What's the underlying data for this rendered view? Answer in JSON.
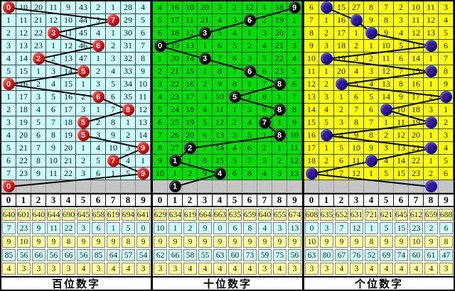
{
  "colors": {
    "line_color": "#000000",
    "grid_line": "#3c4a4c",
    "separator_row_bg": "#c6c6c6",
    "header_row_bg": "#ffffff",
    "stats_row_bgs": [
      "#FFFF99",
      "#CCFFFF",
      "#FFFF99",
      "#CCFFFF",
      "#FFFF99"
    ]
  },
  "chart_data": {
    "type": "table",
    "title": "3D lottery digit trend chart",
    "panels": [
      "百位数字",
      "十位数字",
      "个位数字"
    ],
    "drawn_digits": {
      "hundreds": [
        0,
        7,
        3,
        6,
        2,
        5,
        0,
        6,
        8,
        5,
        5,
        9,
        7,
        9
      ],
      "tens": [
        9,
        6,
        3,
        0,
        3,
        6,
        8,
        5,
        8,
        7,
        8,
        2,
        1,
        4
      ],
      "units": [
        1,
        3,
        4,
        8,
        1,
        8,
        2,
        9,
        5,
        8,
        1,
        8,
        4,
        0
      ]
    },
    "tail_row_digits": {
      "hundreds": 0,
      "tens": 1,
      "units": 8
    }
  },
  "panels": [
    {
      "id": "hundreds",
      "footer_label": "百位数字",
      "colors": {
        "cell_bg": "#CCFFFF",
        "ball_bg": "#EE1111",
        "ball_text": "#FFFFFF"
      },
      "header": [
        "0",
        "1",
        "2",
        "3",
        "4",
        "5",
        "6",
        "7",
        "8",
        "9"
      ],
      "rows": [
        {
          "ball": 0,
          "cells": [
            "0",
            "10",
            "20",
            "11",
            "9",
            "43",
            "2",
            "1",
            "28",
            "4"
          ]
        },
        {
          "ball": 7,
          "cells": [
            "1",
            "11",
            "21",
            "12",
            "10",
            "44",
            "3",
            "7",
            "29",
            "5"
          ]
        },
        {
          "ball": 3,
          "cells": [
            "2",
            "12",
            "22",
            "3",
            "11",
            "45",
            "4",
            "1",
            "30",
            "6"
          ]
        },
        {
          "ball": 6,
          "cells": [
            "3",
            "13",
            "23",
            "1",
            "12",
            "46",
            "6",
            "2",
            "31",
            "7"
          ]
        },
        {
          "ball": 2,
          "cells": [
            "4",
            "14",
            "2",
            "2",
            "13",
            "47",
            "1",
            "3",
            "32",
            "8"
          ]
        },
        {
          "ball": 5,
          "cells": [
            "5",
            "15",
            "1",
            "3",
            "14",
            "5",
            "2",
            "4",
            "33",
            "9"
          ]
        },
        {
          "ball": 0,
          "cells": [
            "0",
            "16",
            "2",
            "4",
            "15",
            "1",
            "3",
            "5",
            "34",
            "10"
          ]
        },
        {
          "ball": 6,
          "cells": [
            "1",
            "17",
            "3",
            "5",
            "16",
            "2",
            "6",
            "6",
            "35",
            "11"
          ]
        },
        {
          "ball": 8,
          "cells": [
            "2",
            "18",
            "4",
            "6",
            "17",
            "3",
            "1",
            "7",
            "8",
            "12"
          ]
        },
        {
          "ball": 5,
          "cells": [
            "3",
            "19",
            "5",
            "7",
            "18",
            "5",
            "2",
            "8",
            "1",
            "13"
          ]
        },
        {
          "ball": 5,
          "cells": [
            "4",
            "20",
            "6",
            "8",
            "19",
            "5",
            "3",
            "9",
            "2",
            "14"
          ]
        },
        {
          "ball": 9,
          "cells": [
            "5",
            "21",
            "7",
            "9",
            "20",
            "1",
            "4",
            "10",
            "3",
            "9"
          ]
        },
        {
          "ball": 7,
          "cells": [
            "6",
            "22",
            "8",
            "10",
            "21",
            "2",
            "5",
            "7",
            "4",
            "1"
          ]
        },
        {
          "ball": 9,
          "cells": [
            "7",
            "23",
            "9",
            "11",
            "22",
            "3",
            "6",
            "1",
            "5",
            "9"
          ]
        }
      ],
      "tail_ball": {
        "col": 0,
        "label": "0"
      },
      "stats": [
        [
          "640",
          "601",
          "640",
          "644",
          "690",
          "645",
          "658",
          "619",
          "694",
          "641"
        ],
        [
          "7",
          "23",
          "9",
          "11",
          "22",
          "3",
          "6",
          "1",
          "5",
          "0"
        ],
        [
          "9",
          "10",
          "9",
          "9",
          "8",
          "9",
          "9",
          "9",
          "8",
          "9"
        ],
        [
          "85",
          "56",
          "66",
          "56",
          "66",
          "56",
          "85",
          "64",
          "57",
          "54"
        ],
        [
          "4",
          "3",
          "3",
          "3",
          "3",
          "4",
          "3",
          "4",
          "4",
          "3"
        ]
      ]
    },
    {
      "id": "tens",
      "footer_label": "十位数字",
      "colors": {
        "cell_bg": "#00DD00",
        "ball_bg": "#000000",
        "ball_text": "#FFFFFF"
      },
      "header": [
        "0",
        "1",
        "2",
        "3",
        "4",
        "5",
        "6",
        "7",
        "8",
        "9"
      ],
      "rows": [
        {
          "ball": 9,
          "cells": [
            "4",
            "16",
            "10",
            "20",
            "3",
            "2",
            "12",
            "1",
            "18",
            "9"
          ]
        },
        {
          "ball": 6,
          "cells": [
            "5",
            "17",
            "11",
            "21",
            "4",
            "3",
            "6",
            "2",
            "19",
            "1"
          ]
        },
        {
          "ball": 3,
          "cells": [
            "6",
            "18",
            "12",
            "3",
            "5",
            "4",
            "1",
            "3",
            "20",
            "2"
          ]
        },
        {
          "ball": 0,
          "cells": [
            "0",
            "19",
            "13",
            "1",
            "6",
            "5",
            "2",
            "4",
            "21",
            "3"
          ]
        },
        {
          "ball": 3,
          "cells": [
            "1",
            "20",
            "14",
            "3",
            "7",
            "6",
            "3",
            "5",
            "22",
            "4"
          ]
        },
        {
          "ball": 6,
          "cells": [
            "2",
            "21",
            "15",
            "1",
            "8",
            "7",
            "6",
            "6",
            "23",
            "5"
          ]
        },
        {
          "ball": 8,
          "cells": [
            "3",
            "22",
            "16",
            "2",
            "9",
            "8",
            "1",
            "7",
            "8",
            "6"
          ]
        },
        {
          "ball": 5,
          "cells": [
            "4",
            "23",
            "17",
            "3",
            "10",
            "5",
            "2",
            "8",
            "1",
            "7"
          ]
        },
        {
          "ball": 8,
          "cells": [
            "5",
            "24",
            "18",
            "4",
            "11",
            "1",
            "3",
            "9",
            "8",
            "8"
          ]
        },
        {
          "ball": 7,
          "cells": [
            "6",
            "25",
            "19",
            "5",
            "12",
            "2",
            "4",
            "7",
            "1",
            "9"
          ]
        },
        {
          "ball": 8,
          "cells": [
            "7",
            "26",
            "20",
            "6",
            "13",
            "3",
            "5",
            "1",
            "8",
            "10"
          ]
        },
        {
          "ball": 2,
          "cells": [
            "8",
            "27",
            "2",
            "7",
            "14",
            "4",
            "6",
            "2",
            "1",
            "11"
          ]
        },
        {
          "ball": 1,
          "cells": [
            "9",
            "1",
            "1",
            "8",
            "15",
            "5",
            "7",
            "3",
            "2",
            "12"
          ]
        },
        {
          "ball": 4,
          "cells": [
            "10",
            "1",
            "2",
            "9",
            "4",
            "6",
            "8",
            "4",
            "3",
            "13"
          ]
        }
      ],
      "tail_ball": {
        "col": 1,
        "label": "1"
      },
      "stats": [
        [
          "629",
          "634",
          "619",
          "664",
          "663",
          "635",
          "659",
          "640",
          "655",
          "674"
        ],
        [
          "10",
          "1",
          "2",
          "9",
          "0",
          "6",
          "8",
          "4",
          "3",
          "13"
        ],
        [
          "9",
          "9",
          "9",
          "9",
          "9",
          "9",
          "9",
          "9",
          "9",
          "9"
        ],
        [
          "62",
          "66",
          "58",
          "55",
          "63",
          "60",
          "73",
          "59",
          "75",
          "56"
        ],
        [
          "3",
          "3",
          "4",
          "4",
          "4",
          "4",
          "4",
          "3",
          "4",
          "3"
        ]
      ]
    },
    {
      "id": "units",
      "footer_label": "个位数字",
      "colors": {
        "cell_bg": "#FFFF00",
        "ball_bg": "#1515CC",
        "ball_text": "#8B1111"
      },
      "header": [
        "0",
        "1",
        "2",
        "3",
        "4",
        "5",
        "6",
        "7",
        "8",
        "9"
      ],
      "rows": [
        {
          "ball": 1,
          "cells": [
            "6",
            "1",
            "15",
            "27",
            "8",
            "7",
            "2",
            "10",
            "11",
            "3"
          ]
        },
        {
          "ball": 3,
          "cells": [
            "7",
            "1",
            "16",
            "3",
            "9",
            "8",
            "3",
            "11",
            "12",
            "4"
          ]
        },
        {
          "ball": 4,
          "cells": [
            "8",
            "2",
            "17",
            "1",
            "4",
            "9",
            "4",
            "12",
            "13",
            "5"
          ]
        },
        {
          "ball": 8,
          "cells": [
            "9",
            "3",
            "18",
            "2",
            "1",
            "10",
            "5",
            "13",
            "8",
            "6"
          ]
        },
        {
          "ball": 1,
          "cells": [
            "10",
            "1",
            "19",
            "3",
            "2",
            "11",
            "6",
            "14",
            "1",
            "7"
          ]
        },
        {
          "ball": 8,
          "cells": [
            "11",
            "1",
            "20",
            "4",
            "3",
            "12",
            "7",
            "15",
            "8",
            "8"
          ]
        },
        {
          "ball": 2,
          "cells": [
            "12",
            "2",
            "2",
            "5",
            "4",
            "13",
            "8",
            "16",
            "1",
            "9"
          ]
        },
        {
          "ball": 9,
          "cells": [
            "13",
            "3",
            "1",
            "6",
            "5",
            "14",
            "9",
            "17",
            "2",
            "9"
          ]
        },
        {
          "ball": 5,
          "cells": [
            "14",
            "4",
            "2",
            "7",
            "6",
            "5",
            "10",
            "18",
            "3",
            "1"
          ]
        },
        {
          "ball": 8,
          "cells": [
            "15",
            "5",
            "3",
            "8",
            "7",
            "1",
            "11",
            "19",
            "8",
            "2"
          ]
        },
        {
          "ball": 1,
          "cells": [
            "16",
            "1",
            "4",
            "9",
            "8",
            "2",
            "12",
            "20",
            "1",
            "3"
          ]
        },
        {
          "ball": 8,
          "cells": [
            "17",
            "1",
            "5",
            "10",
            "9",
            "3",
            "13",
            "21",
            "8",
            "4"
          ]
        },
        {
          "ball": 4,
          "cells": [
            "18",
            "2",
            "6",
            "11",
            "4",
            "4",
            "14",
            "22",
            "1",
            "5"
          ]
        },
        {
          "ball": 0,
          "cells": [
            "0",
            "3",
            "7",
            "12",
            "1",
            "5",
            "15",
            "23",
            "2",
            "6"
          ]
        }
      ],
      "tail_ball": {
        "col": 8,
        "label": "8"
      },
      "stats": [
        [
          "608",
          "635",
          "652",
          "631",
          "721",
          "621",
          "645",
          "612",
          "659",
          "688"
        ],
        [
          "0",
          "3",
          "7",
          "12",
          "1",
          "5",
          "15",
          "23",
          "2",
          "6"
        ],
        [
          "10",
          "9",
          "9",
          "9",
          "8",
          "9",
          "9",
          "10",
          "9",
          "8"
        ],
        [
          "63",
          "80",
          "67",
          "76",
          "52",
          "69",
          "74",
          "60",
          "61",
          "47"
        ],
        [
          "3",
          "3",
          "4",
          "3",
          "4",
          "4",
          "4",
          "4",
          "4",
          "3"
        ]
      ]
    }
  ]
}
